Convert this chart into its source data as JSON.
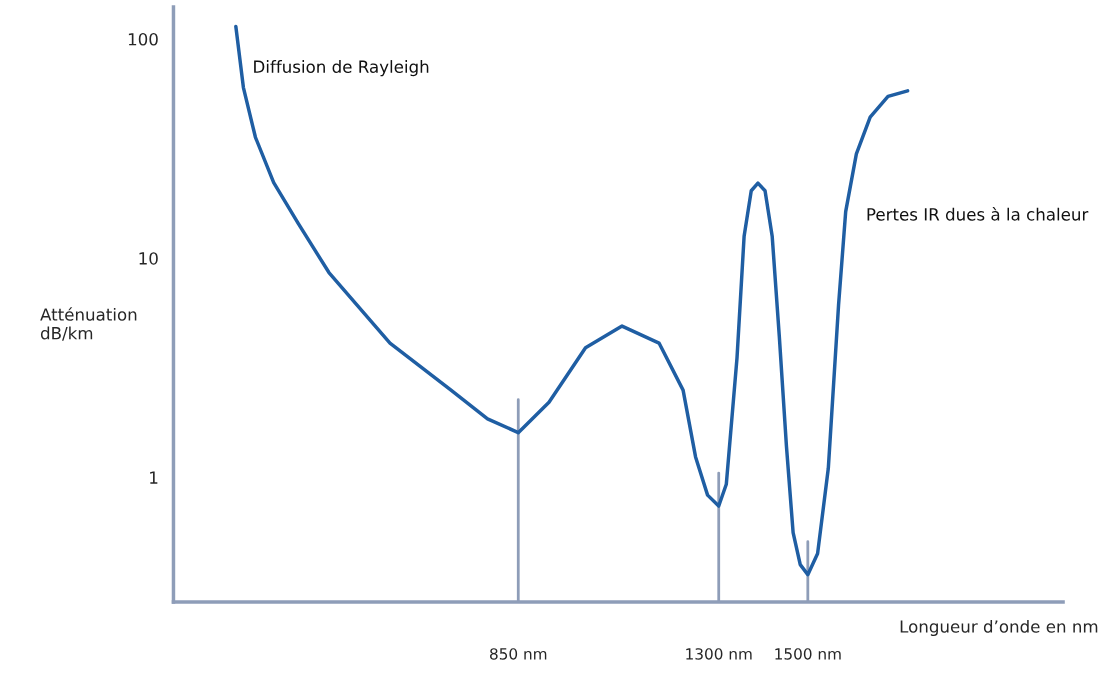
{
  "chart_data": {
    "type": "line",
    "xlabel": "Longueur d’onde en nm",
    "ylabel": "Atténuation\ndB/km",
    "log": "y",
    "xlim": [
      76,
      2073
    ],
    "ylim": [
      0.27,
      140
    ],
    "xticks": [
      {
        "value": 850,
        "label": "850 nm"
      },
      {
        "value": 1300,
        "label": "1300 nm"
      },
      {
        "value": 1500,
        "label": "1500 nm"
      }
    ],
    "yticks": [
      1,
      10,
      100
    ],
    "grid": false,
    "legend": false,
    "marker": "none",
    "line_style": "solid",
    "series": [
      {
        "color": "#1f5ea3",
        "x": [
          216,
          233,
          260,
          301,
          356,
          425,
          562,
          699,
          781,
          850,
          919,
          1001,
          1083,
          1166,
          1220,
          1248,
          1275,
          1300,
          1317,
          1341,
          1357,
          1373,
          1388,
          1404,
          1420,
          1436,
          1452,
          1467,
          1483,
          1500,
          1522,
          1546,
          1569,
          1585,
          1609,
          1640,
          1680,
          1724
        ],
        "values": [
          114,
          60,
          35.6,
          22.1,
          14.4,
          8.6,
          4.1,
          2.5,
          1.85,
          1.6,
          2.2,
          3.9,
          4.9,
          4.1,
          2.5,
          1.24,
          0.83,
          0.74,
          0.93,
          3.5,
          12.6,
          20.3,
          22,
          20.3,
          12.6,
          4.4,
          1.39,
          0.56,
          0.4,
          0.36,
          0.45,
          1.1,
          6.1,
          16.3,
          29.9,
          44,
          54.7,
          58
        ]
      }
    ],
    "ref_lines": [
      {
        "axis": "x",
        "value": 850,
        "color": "#8e9db8"
      },
      {
        "axis": "x",
        "value": 1300,
        "color": "#8e9db8"
      },
      {
        "axis": "x",
        "value": 1500,
        "color": "#8e9db8"
      }
    ],
    "annotations": [
      "Diffusion de Rayleigh",
      "Pertes IR dues à la chaleur"
    ]
  }
}
